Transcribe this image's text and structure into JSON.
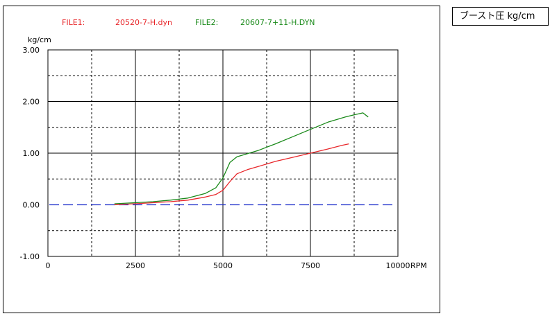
{
  "measurement_title": "ブースト圧  kg/cm",
  "files": [
    {
      "label": "FILE1:",
      "name": "20520-7-H.dyn",
      "color": "#e8262a"
    },
    {
      "label": "FILE2:",
      "name": "20607-7+11-H.DYN",
      "color": "#1a8a1a"
    }
  ],
  "chart_data": {
    "type": "line",
    "xlabel": "RPM",
    "ylabel": "kg/cm",
    "xlim": [
      0,
      10000
    ],
    "ylim": [
      -1.0,
      3.0
    ],
    "x_ticks": [
      0,
      2500,
      5000,
      7500,
      10000
    ],
    "x_tick_labels": [
      "0",
      "2500",
      "5000",
      "7500",
      "10000"
    ],
    "y_ticks": [
      -1.0,
      0.0,
      1.0,
      2.0,
      3.0
    ],
    "y_tick_labels": [
      "-1.00",
      "0.00",
      "1.00",
      "2.00",
      "3.00"
    ],
    "grid": true,
    "reference_line": {
      "y": 0.0,
      "color": "#2233cc"
    },
    "series": [
      {
        "name": "20520-7-H.dyn",
        "color": "#e8262a",
        "x": [
          1900,
          2500,
          3000,
          3500,
          4000,
          4500,
          4800,
          5000,
          5200,
          5400,
          5700,
          6000,
          6500,
          7000,
          7500,
          8000,
          8400,
          8600
        ],
        "y": [
          0.0,
          0.02,
          0.04,
          0.06,
          0.09,
          0.15,
          0.2,
          0.28,
          0.45,
          0.6,
          0.68,
          0.74,
          0.84,
          0.92,
          1.0,
          1.08,
          1.15,
          1.18
        ]
      },
      {
        "name": "20607-7+11-H.DYN",
        "color": "#1a8a1a",
        "x": [
          1900,
          2500,
          3000,
          3500,
          4000,
          4500,
          4800,
          5000,
          5200,
          5400,
          5700,
          6000,
          6500,
          7000,
          7500,
          8000,
          8500,
          8800,
          9000,
          9150
        ],
        "y": [
          0.02,
          0.04,
          0.06,
          0.09,
          0.13,
          0.22,
          0.33,
          0.52,
          0.82,
          0.93,
          0.99,
          1.05,
          1.18,
          1.32,
          1.46,
          1.6,
          1.7,
          1.75,
          1.78,
          1.7
        ]
      }
    ]
  }
}
